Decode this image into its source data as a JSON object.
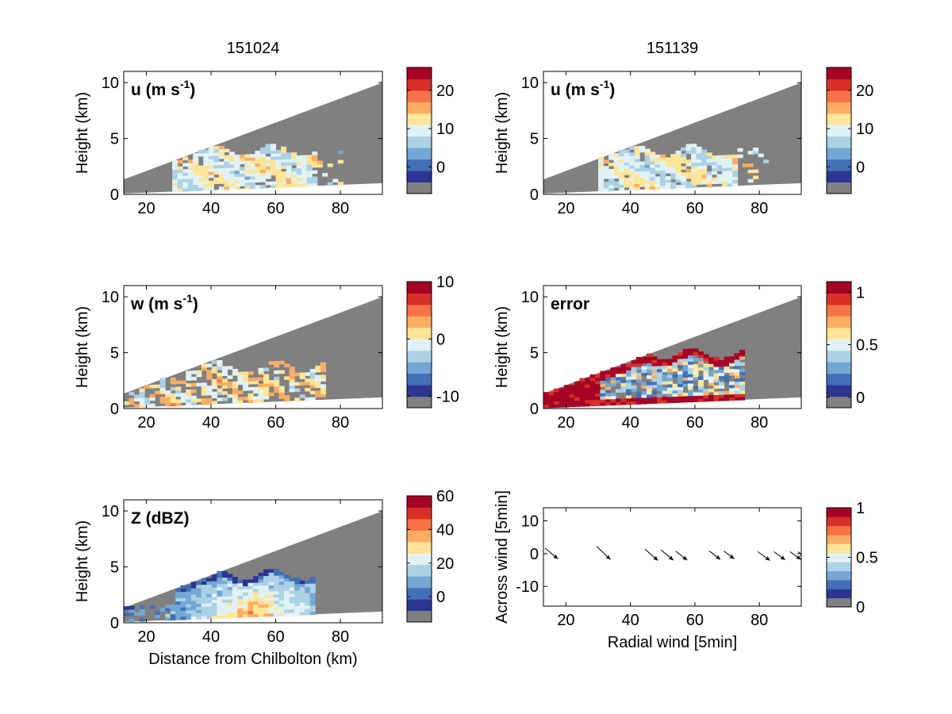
{
  "chart_data": [
    {
      "type": "heatmap",
      "title": "151024",
      "label_main": "u (m s",
      "label_sup": "-1",
      "label_close": ")",
      "ylabel": "Height (km)",
      "xlabel": "",
      "xlim": [
        13,
        93
      ],
      "ylim": [
        0,
        11
      ],
      "xticks": [
        "20",
        "40",
        "60",
        "80"
      ],
      "yticks": [
        "0",
        "5",
        "10"
      ],
      "colorbar": {
        "vmin": -7,
        "vmax": 26,
        "ticks": [
          0,
          10,
          20
        ],
        "tick_labels": [
          "0",
          "10",
          "20"
        ]
      },
      "background_color": "#808080",
      "shape": "u",
      "seed": 11,
      "ranges": {
        "x0": 28,
        "x1": 80,
        "echo_top": 3.8
      }
    },
    {
      "type": "heatmap",
      "title": "151139",
      "label_main": "u (m s",
      "label_sup": "-1",
      "label_close": ")",
      "ylabel": "Height (km)",
      "xlabel": "",
      "xlim": [
        13,
        93
      ],
      "ylim": [
        0,
        11
      ],
      "xticks": [
        "20",
        "40",
        "60",
        "80"
      ],
      "yticks": [
        "0",
        "5",
        "10"
      ],
      "colorbar": {
        "vmin": -7,
        "vmax": 26,
        "ticks": [
          0,
          10,
          20
        ],
        "tick_labels": [
          "0",
          "10",
          "20"
        ]
      },
      "background_color": "#808080",
      "shape": "u",
      "seed": 23,
      "ranges": {
        "x0": 30,
        "x1": 82,
        "echo_top": 3.8
      }
    },
    {
      "type": "heatmap",
      "title": "",
      "label_main": "w (m s",
      "label_sup": "-1",
      "label_close": ")",
      "ylabel": "Height (km)",
      "xlabel": "",
      "xlim": [
        13,
        93
      ],
      "ylim": [
        0,
        11
      ],
      "xticks": [
        "20",
        "40",
        "60",
        "80"
      ],
      "yticks": [
        "0",
        "5",
        "10"
      ],
      "colorbar": {
        "vmin": -12,
        "vmax": 10,
        "ticks": [
          -10,
          0,
          10
        ],
        "tick_labels": [
          "-10",
          "0",
          "10"
        ]
      },
      "background_color": "#808080",
      "shape": "w",
      "seed": 37,
      "ranges": {
        "x0": 13,
        "x1": 75,
        "echo_top": 3.7
      }
    },
    {
      "type": "heatmap",
      "title": "",
      "label_main": "error",
      "label_sup": "",
      "label_close": "",
      "ylabel": "Height (km)",
      "xlabel": "",
      "xlim": [
        13,
        93
      ],
      "ylim": [
        0,
        11
      ],
      "xticks": [
        "20",
        "40",
        "60",
        "80"
      ],
      "yticks": [
        "0",
        "5",
        "10"
      ],
      "colorbar": {
        "vmin": -0.1,
        "vmax": 1.1,
        "ticks": [
          0,
          0.5,
          1
        ],
        "tick_labels": [
          "0",
          "0.5",
          "1"
        ]
      },
      "background_color": "#808080",
      "shape": "error",
      "seed": 51,
      "ranges": {
        "x0": 13,
        "x1": 75,
        "echo_top": 4.8
      }
    },
    {
      "type": "heatmap",
      "title": "",
      "label_main": "Z (dBZ)",
      "label_sup": "",
      "label_close": "",
      "ylabel": "Height (km)",
      "xlabel": "Distance from Chilbolton (km)",
      "xlim": [
        13,
        93
      ],
      "ylim": [
        0,
        11
      ],
      "xticks": [
        "20",
        "40",
        "60",
        "80"
      ],
      "yticks": [
        "0",
        "5",
        "10"
      ],
      "colorbar": {
        "vmin": -15,
        "vmax": 60,
        "ticks": [
          0,
          20,
          40,
          60
        ],
        "tick_labels": [
          "0",
          "20",
          "40",
          "60"
        ]
      },
      "background_color": "#808080",
      "shape": "z",
      "seed": 67,
      "ranges": {
        "x0": 13,
        "x1": 72,
        "echo_top": 4.2
      }
    },
    {
      "type": "quiver",
      "title": "",
      "ylabel": "Across wind [5min]",
      "xlabel": "Radial wind [5min]",
      "xlim": [
        13,
        93
      ],
      "ylim": [
        -16,
        14
      ],
      "xticks": [
        "20",
        "40",
        "60",
        "80"
      ],
      "yticks": [
        "-10",
        "0",
        "10"
      ],
      "colorbar": {
        "vmin": 0,
        "vmax": 1,
        "ticks": [
          0,
          0.5,
          1
        ],
        "tick_labels": [
          "0",
          "0.5",
          "1"
        ]
      },
      "arrows": [
        {
          "x": 13.5,
          "y": 1.7,
          "u": 4.0,
          "v": -3.3
        },
        {
          "x": 29.5,
          "y": 2.2,
          "u": 4.3,
          "v": -4.0
        },
        {
          "x": 44.5,
          "y": 1.4,
          "u": 4.0,
          "v": -3.5
        },
        {
          "x": 49.5,
          "y": 1.1,
          "u": 3.8,
          "v": -3.1
        },
        {
          "x": 54.0,
          "y": 0.8,
          "u": 3.6,
          "v": -2.8
        },
        {
          "x": 64.5,
          "y": 0.8,
          "u": 3.4,
          "v": -2.6
        },
        {
          "x": 69.0,
          "y": 0.8,
          "u": 3.2,
          "v": -2.4
        },
        {
          "x": 79.5,
          "y": 0.6,
          "u": 3.8,
          "v": -2.7
        },
        {
          "x": 84.5,
          "y": 0.6,
          "u": 3.5,
          "v": -2.5
        },
        {
          "x": 89.5,
          "y": 0.6,
          "u": 3.4,
          "v": -2.4
        },
        {
          "x": 92.0,
          "y": 0.6,
          "u": 2.0,
          "v": -1.6
        }
      ]
    }
  ],
  "palette": [
    "#808080",
    "#2b3592",
    "#4370b6",
    "#74a7d3",
    "#abd1e5",
    "#e1f2f7",
    "#fee598",
    "#fcad63",
    "#f57346",
    "#d63027",
    "#a60426"
  ]
}
